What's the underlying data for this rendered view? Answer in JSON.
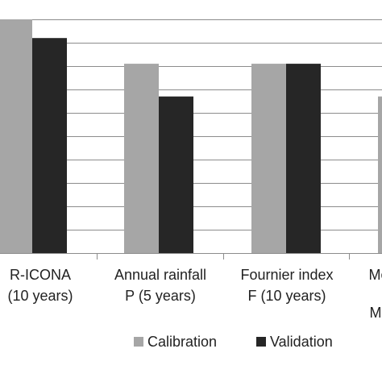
{
  "chart_data": {
    "type": "bar",
    "categories": [
      [
        "R-ICONA",
        "(10 years)"
      ],
      [
        "Annual rainfall",
        "P (5 years)"
      ],
      [
        "Fournier index",
        "F (10 years)"
      ],
      [
        "Mo",
        "M"
      ]
    ],
    "series": [
      {
        "name": "Calibration",
        "color": "#a6a6a6",
        "values": [
          1.0,
          0.81,
          0.81,
          0.67
        ]
      },
      {
        "name": "Validation",
        "color": "#262626",
        "values": [
          0.92,
          0.67,
          0.81,
          null
        ]
      }
    ],
    "ylim": [
      0,
      1
    ],
    "grid": true,
    "legend": "bottom"
  }
}
